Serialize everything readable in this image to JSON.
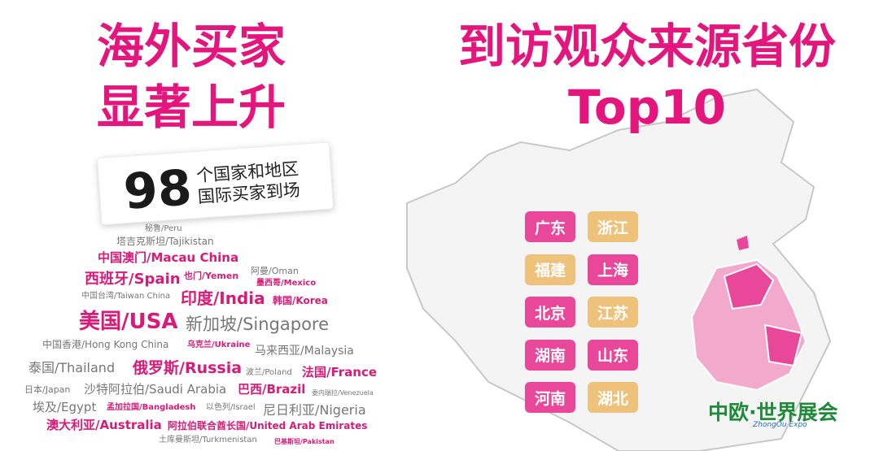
{
  "left": {
    "title_lines": [
      "海外买家",
      "显著上升"
    ],
    "highlight": {
      "number": "98",
      "caption_lines": [
        "个国家和地区",
        "国际买家到场"
      ]
    },
    "countries": [
      "秘鲁/Peru",
      "塔吉克斯坦/Tajikistan",
      "中国澳门/Macau China",
      "阿曼/Oman",
      "西班牙/Spain",
      "也门/Yemen",
      "墨西哥/Mexico",
      "中国台湾/Taiwan China",
      "印度/India",
      "韩国/Korea",
      "美国/USA",
      "新加坡/Singapore",
      "中国香港/Hong Kong China",
      "乌克兰/Ukraine",
      "马来西亚/Malaysia",
      "泰国/Thailand",
      "俄罗斯/Russia",
      "波兰/Poland",
      "法国/France",
      "日本/Japan",
      "沙特阿拉伯/Saudi Arabia",
      "巴西/Brazil",
      "委内瑞拉/Venezuela",
      "埃及/Egypt",
      "孟加拉国/Bangladesh",
      "以色列/Israel",
      "尼日利亚/Nigeria",
      "澳大利亚/Australia",
      "阿拉伯联合酋长国/United Arab Emirates",
      "土库曼斯坦/Turkmenistan",
      "巴基斯坦/Pakistan"
    ]
  },
  "right": {
    "title_lines": [
      "到访观众来源省份",
      "Top10"
    ],
    "provinces": [
      "广东",
      "浙江",
      "福建",
      "上海",
      "北京",
      "江苏",
      "湖南",
      "山东",
      "河南",
      "湖北"
    ]
  },
  "logo": {
    "name": "中欧·世界展会",
    "subtitle": "ZhongOu Expo"
  }
}
